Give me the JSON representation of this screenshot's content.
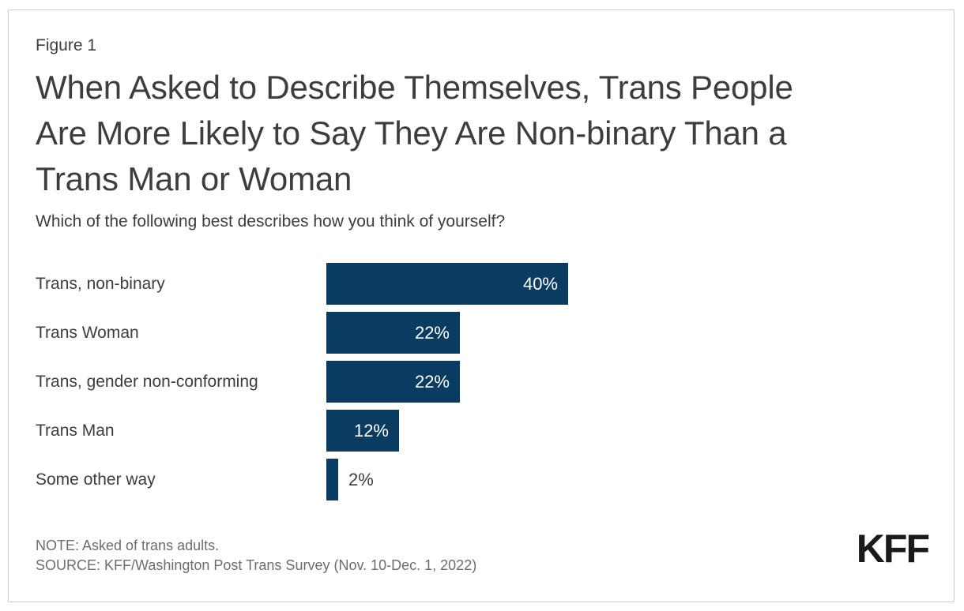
{
  "figure_label": "Figure 1",
  "title_lines": [
    "When Asked to Describe Themselves, Trans People",
    "Are More Likely to Say They Are Non-binary Than a",
    "Trans Man or Woman"
  ],
  "chart_data": {
    "type": "bar",
    "orientation": "horizontal",
    "title": "When Asked to Describe Themselves, Trans People Are More Likely to Say They Are Non-binary Than a Trans Man or Woman",
    "question": "Which of the following best describes how you think of yourself?",
    "categories": [
      "Trans, non-binary",
      "Trans Woman",
      "Trans, gender non-conforming",
      "Trans Man",
      "Some other way"
    ],
    "values": [
      40,
      22,
      22,
      12,
      2
    ],
    "value_labels": [
      "40%",
      "22%",
      "22%",
      "12%",
      "2%"
    ],
    "unit": "%",
    "xlim": [
      0,
      40
    ],
    "grid": false,
    "legend": false,
    "bar_color": "#0a3c61"
  },
  "footer": {
    "note": "NOTE: Asked of trans adults.",
    "source": "SOURCE: KFF/Washington Post Trans Survey (Nov. 10-Dec. 1, 2022)",
    "logo": "KFF"
  },
  "colors": {
    "bar": "#0a3c61",
    "heading_text": "#3d3d3d",
    "muted_text": "#6d6d6d",
    "border": "#cbcbcb",
    "value_label_inside": "#ffffff",
    "logo": "#1a1a1a"
  }
}
